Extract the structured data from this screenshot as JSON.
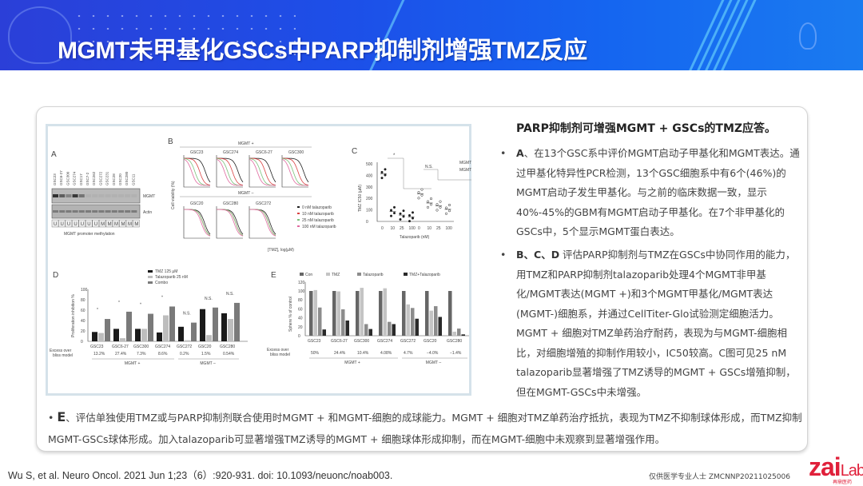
{
  "header": {
    "title": "MGMT未甲基化GSCs中PARP抑制剂增强TMZ反应"
  },
  "figure": {
    "panel_labels": [
      "A",
      "B",
      "C",
      "D",
      "E"
    ],
    "a": {
      "cell_lines": [
        "GSC23",
        "GSC6-27",
        "GSC300",
        "GSC274",
        "GSC17",
        "GSC7-2",
        "GSC262",
        "GSC272",
        "GSC231",
        "GSC28",
        "GSC20",
        "GSC280",
        "GSC11"
      ],
      "methylation": [
        "U",
        "U",
        "U",
        "U",
        "U",
        "U",
        "U",
        "M",
        "M",
        "M",
        "M",
        "M",
        "M"
      ],
      "mgmt_band": [
        0.9,
        0.6,
        0.35,
        0.85,
        0.45,
        0.05,
        0.05,
        0.05,
        0.05,
        0.05,
        0.05,
        0.05,
        0.05
      ],
      "row_labels": [
        "MGMT",
        "Actin"
      ],
      "caption": "MGMT promoter methylation"
    },
    "b": {
      "top_label": "MGMT +",
      "bottom_label": "MGMT –",
      "ylabel": "Cell viability (%)",
      "xlabel": "[TMZ], log(µM)",
      "top_plots": [
        "GSC23",
        "GSC274",
        "GSC6-27",
        "GSC300"
      ],
      "bottom_plots": [
        "GSC20",
        "GSC280",
        "GSC272"
      ],
      "legend": [
        "0 nM talazoparib",
        "10 nM talazoparib",
        "25 nM talazoparib",
        "100 nM talazoparib"
      ],
      "colors": [
        "#222222",
        "#d94040",
        "#7cc27c",
        "#e06aa0"
      ]
    },
    "c": {
      "ylabel": "TMZ IC50 (µM)",
      "xlabel": "Talazoparib (nM)",
      "yticks": [
        "0",
        "100",
        "200",
        "300",
        "400",
        "500"
      ],
      "xticks": [
        "0",
        "10",
        "25",
        "100",
        "0",
        "10",
        "25",
        "100"
      ],
      "sig": "*",
      "ns": "N.S.",
      "legend": [
        "MGMT +",
        "MGMT –"
      ],
      "means": [
        415,
        85,
        55,
        40,
        240,
        160,
        135,
        105
      ]
    },
    "d": {
      "legend": [
        "TMZ 125 µM",
        "Talazoparib 25 nM",
        "Combo"
      ],
      "ylabel": "Proliferation inhibition %",
      "yticks": [
        "0",
        "20",
        "40",
        "60",
        "80",
        "100"
      ],
      "groups": [
        "GSC23",
        "GSC6-27",
        "GSC300",
        "GSC274",
        "GSC272",
        "GSC20",
        "GSC280"
      ],
      "excess_label": [
        "Excess over",
        "bliss model"
      ],
      "excess": [
        "13.2%",
        "27.4%",
        "7.3%",
        "8.6%",
        "0.2%",
        "1.5%",
        "0.54%"
      ],
      "values": [
        [
          18,
          16,
          43
        ],
        [
          24,
          6,
          57
        ],
        [
          24,
          24,
          53
        ],
        [
          17,
          50,
          67
        ],
        [
          28,
          2,
          36
        ],
        [
          62,
          12,
          65
        ],
        [
          54,
          43,
          74
        ]
      ],
      "sig": [
        "*",
        "*",
        "*",
        "*",
        "N.S.",
        "N.S.",
        "N.S."
      ],
      "group_labels": [
        "MGMT +",
        "MGMT –"
      ],
      "colors": [
        "#1a1a1a",
        "#bdbdbd",
        "#7a7a7a"
      ]
    },
    "e": {
      "legend": [
        "Con",
        "TMZ",
        "Talazoparib",
        "TMZ+Talazoparib"
      ],
      "ylabel": "Sphere % of control",
      "yticks": [
        "0",
        "20",
        "40",
        "60",
        "80",
        "100",
        "120"
      ],
      "groups": [
        "GSC23",
        "GSC6-27",
        "GSC300",
        "GSC274",
        "GSC272",
        "GSC20",
        "GSC280"
      ],
      "excess_label": [
        "Excess over",
        "bliss model"
      ],
      "excess": [
        "50%",
        "24.4%",
        "10.4%",
        "4.08%",
        "4.7%",
        "−4.0%",
        "−1.4%"
      ],
      "values": [
        [
          100,
          102,
          63,
          14
        ],
        [
          100,
          99,
          59,
          34
        ],
        [
          100,
          107,
          26,
          15
        ],
        [
          100,
          106,
          31,
          26
        ],
        [
          100,
          70,
          62,
          38
        ],
        [
          100,
          56,
          66,
          42
        ],
        [
          100,
          9,
          16,
          3
        ]
      ],
      "group_labels": [
        "MGMT +",
        "MGMT –"
      ],
      "colors": [
        "#666666",
        "#c4c4c4",
        "#8c8c8c",
        "#2a2a2a"
      ]
    }
  },
  "right": {
    "heading": "PARP抑制剂可增强MGMT + GSCs的TMZ应答。",
    "bullets": [
      {
        "lead": "A",
        "text": "、在13个GSC系中评价MGMT启动子甲基化和MGMT表达。通过甲基化特异性PCR检测，13个GSC细胞系中有6个(46%)的MGMT启动子发生甲基化。与之前的临床数据一致，显示40%-45%的GBM有MGMT启动子甲基化。在7个非甲基化的GSCs中，5个显示MGMT蛋白表达。"
      },
      {
        "lead": "B、C、D",
        "text": " 评估PARP抑制剂与TMZ在GSCs中协同作用的能力，用TMZ和PARP抑制剂talazoparib处理4个MGMT非甲基化/MGMT表达(MGMT +)和3个MGMT甲基化/MGMT表达(MGMT-)细胞系，并通过CellTiter-Glo试验测定细胞活力。MGMT + 细胞对TMZ单药治疗耐药，表现为与MGMT-细胞相比，对细胞增殖的抑制作用较小，IC50较高。C图可见25 nM talazoparib显著增强了TMZ诱导的MGMT + GSCs增殖抑制，但在MGMT-GSCs中未增强。"
      }
    ]
  },
  "bottom": {
    "lead": "E",
    "text": "、评估单独使用TMZ或与PARP抑制剂联合使用时MGMT + 和MGMT-细胞的成球能力。MGMT + 细胞对TMZ单药治疗抵抗，表现为TMZ不抑制球体形成，而TMZ抑制MGMT-GSCs球体形成。加入talazoparib可显著增强TMZ诱导的MGMT + 细胞球体形成抑制，而在MGMT-细胞中未观察到显著增强作用。"
  },
  "footer": {
    "citation": "Wu S, et al. Neuro Oncol. 2021 Jun 1;23（6）:920-931. doi: 10.1093/neuonc/noab003.",
    "code": "仅供医学专业人士  ZMCNNP20211025006",
    "logo": "zai",
    "logo_lab": "Lab",
    "logo_sub": "再鼎医药"
  }
}
